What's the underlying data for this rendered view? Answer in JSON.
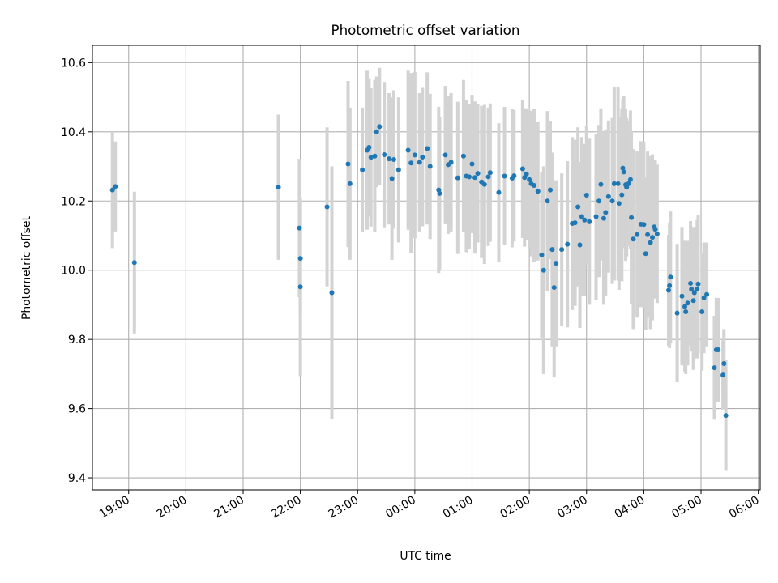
{
  "chart_data": {
    "type": "scatter",
    "title": "Photometric offset variation",
    "xlabel": "UTC time",
    "ylabel": "Photometric offset",
    "colors": {
      "points": "#1f77b4",
      "error_bars": "#d3d3d3",
      "grid": "#b0b0b0"
    },
    "grid": true,
    "legend": "none",
    "xaxis": {
      "kind": "time-of-day",
      "start_time": "18:22",
      "end_time": "06:02",
      "tick_times": [
        "19:00",
        "20:00",
        "21:00",
        "22:00",
        "23:00",
        "00:00",
        "01:00",
        "02:00",
        "03:00",
        "04:00",
        "05:00",
        "06:00"
      ],
      "tick_labels": [
        "19:00",
        "20:00",
        "21:00",
        "22:00",
        "23:00",
        "00:00",
        "01:00",
        "02:00",
        "03:00",
        "04:00",
        "05:00",
        "06:00"
      ]
    },
    "yaxis": {
      "range": [
        9.365,
        10.65
      ],
      "ticks": [
        9.4,
        9.6,
        9.8,
        10.0,
        10.2,
        10.4,
        10.6
      ],
      "tick_labels": [
        "9.4",
        "9.6",
        "9.8",
        "10.0",
        "10.2",
        "10.4",
        "10.6"
      ]
    },
    "points": [
      {
        "x": "18:43",
        "y": 10.232,
        "err": 0.168
      },
      {
        "x": "18:46",
        "y": 10.242,
        "err": 0.13
      },
      {
        "x": "19:06",
        "y": 10.022,
        "err": 0.205
      },
      {
        "x": "21:37",
        "y": 10.24,
        "err": 0.21
      },
      {
        "x": "21:59",
        "y": 10.122,
        "err": 0.2
      },
      {
        "x": "22:00",
        "y": 10.034,
        "err": 0.165
      },
      {
        "x": "22:00",
        "y": 9.952,
        "err": 0.258
      },
      {
        "x": "22:28",
        "y": 10.183,
        "err": 0.23
      },
      {
        "x": "22:33",
        "y": 9.935,
        "err": 0.365
      },
      {
        "x": "22:50",
        "y": 10.307,
        "err": 0.24
      },
      {
        "x": "22:52",
        "y": 10.25,
        "err": 0.22
      },
      {
        "x": "23:05",
        "y": 10.29,
        "err": 0.18
      },
      {
        "x": "23:10",
        "y": 10.347,
        "err": 0.23
      },
      {
        "x": "23:12",
        "y": 10.355,
        "err": 0.2
      },
      {
        "x": "23:14",
        "y": 10.326,
        "err": 0.2
      },
      {
        "x": "23:18",
        "y": 10.33,
        "err": 0.22
      },
      {
        "x": "23:20",
        "y": 10.4,
        "err": 0.16
      },
      {
        "x": "23:23",
        "y": 10.415,
        "err": 0.17
      },
      {
        "x": "23:28",
        "y": 10.334,
        "err": 0.21
      },
      {
        "x": "23:33",
        "y": 10.322,
        "err": 0.19
      },
      {
        "x": "23:36",
        "y": 10.265,
        "err": 0.235
      },
      {
        "x": "23:38",
        "y": 10.32,
        "err": 0.2
      },
      {
        "x": "23:43",
        "y": 10.29,
        "err": 0.21
      },
      {
        "x": "23:53",
        "y": 10.347,
        "err": 0.23
      },
      {
        "x": "23:56",
        "y": 10.31,
        "err": 0.26
      },
      {
        "x": "00:00",
        "y": 10.333,
        "err": 0.24
      },
      {
        "x": "00:05",
        "y": 10.312,
        "err": 0.2
      },
      {
        "x": "00:08",
        "y": 10.327,
        "err": 0.2
      },
      {
        "x": "00:13",
        "y": 10.352,
        "err": 0.22
      },
      {
        "x": "00:16",
        "y": 10.3,
        "err": 0.21
      },
      {
        "x": "00:25",
        "y": 10.232,
        "err": 0.24
      },
      {
        "x": "00:26",
        "y": 10.222,
        "err": 0.22
      },
      {
        "x": "00:32",
        "y": 10.333,
        "err": 0.2
      },
      {
        "x": "00:35",
        "y": 10.305,
        "err": 0.2
      },
      {
        "x": "00:38",
        "y": 10.312,
        "err": 0.2
      },
      {
        "x": "00:45",
        "y": 10.267,
        "err": 0.22
      },
      {
        "x": "00:51",
        "y": 10.33,
        "err": 0.22
      },
      {
        "x": "00:54",
        "y": 10.272,
        "err": 0.22
      },
      {
        "x": "00:57",
        "y": 10.27,
        "err": 0.21
      },
      {
        "x": "01:00",
        "y": 10.307,
        "err": 0.2
      },
      {
        "x": "01:03",
        "y": 10.268,
        "err": 0.22
      },
      {
        "x": "01:06",
        "y": 10.28,
        "err": 0.2
      },
      {
        "x": "01:10",
        "y": 10.255,
        "err": 0.22
      },
      {
        "x": "01:13",
        "y": 10.248,
        "err": 0.23
      },
      {
        "x": "01:17",
        "y": 10.27,
        "err": 0.2
      },
      {
        "x": "01:19",
        "y": 10.282,
        "err": 0.2
      },
      {
        "x": "01:28",
        "y": 10.225,
        "err": 0.2
      },
      {
        "x": "01:34",
        "y": 10.272,
        "err": 0.2
      },
      {
        "x": "01:42",
        "y": 10.266,
        "err": 0.2
      },
      {
        "x": "01:44",
        "y": 10.273,
        "err": 0.19
      },
      {
        "x": "01:53",
        "y": 10.293,
        "err": 0.2
      },
      {
        "x": "01:55",
        "y": 10.268,
        "err": 0.2
      },
      {
        "x": "01:57",
        "y": 10.278,
        "err": 0.19
      },
      {
        "x": "02:00",
        "y": 10.262,
        "err": 0.2
      },
      {
        "x": "02:02",
        "y": 10.25,
        "err": 0.21
      },
      {
        "x": "02:05",
        "y": 10.245,
        "err": 0.22
      },
      {
        "x": "02:09",
        "y": 10.228,
        "err": 0.2
      },
      {
        "x": "02:13",
        "y": 10.044,
        "err": 0.24
      },
      {
        "x": "02:15",
        "y": 10.0,
        "err": 0.3
      },
      {
        "x": "02:19",
        "y": 10.2,
        "err": 0.26
      },
      {
        "x": "02:22",
        "y": 10.232,
        "err": 0.2
      },
      {
        "x": "02:24",
        "y": 10.06,
        "err": 0.28
      },
      {
        "x": "02:26",
        "y": 9.95,
        "err": 0.26
      },
      {
        "x": "02:28",
        "y": 10.02,
        "err": 0.24
      },
      {
        "x": "02:34",
        "y": 10.06,
        "err": 0.22
      },
      {
        "x": "02:40",
        "y": 10.075,
        "err": 0.24
      },
      {
        "x": "02:45",
        "y": 10.135,
        "err": 0.25
      },
      {
        "x": "02:48",
        "y": 10.137,
        "err": 0.24
      },
      {
        "x": "02:51",
        "y": 10.183,
        "err": 0.23
      },
      {
        "x": "02:53",
        "y": 10.073,
        "err": 0.24
      },
      {
        "x": "02:55",
        "y": 10.155,
        "err": 0.23
      },
      {
        "x": "02:58",
        "y": 10.145,
        "err": 0.22
      },
      {
        "x": "03:00",
        "y": 10.217,
        "err": 0.2
      },
      {
        "x": "03:03",
        "y": 10.14,
        "err": 0.24
      },
      {
        "x": "03:10",
        "y": 10.155,
        "err": 0.24
      },
      {
        "x": "03:13",
        "y": 10.2,
        "err": 0.22
      },
      {
        "x": "03:15",
        "y": 10.248,
        "err": 0.22
      },
      {
        "x": "03:18",
        "y": 10.15,
        "err": 0.25
      },
      {
        "x": "03:20",
        "y": 10.167,
        "err": 0.24
      },
      {
        "x": "03:23",
        "y": 10.213,
        "err": 0.22
      },
      {
        "x": "03:27",
        "y": 10.2,
        "err": 0.24
      },
      {
        "x": "03:29",
        "y": 10.25,
        "err": 0.28
      },
      {
        "x": "03:33",
        "y": 10.25,
        "err": 0.28
      },
      {
        "x": "03:34",
        "y": 10.193,
        "err": 0.25
      },
      {
        "x": "03:37",
        "y": 10.218,
        "err": 0.25
      },
      {
        "x": "03:38",
        "y": 10.295,
        "err": 0.2
      },
      {
        "x": "03:39",
        "y": 10.284,
        "err": 0.22
      },
      {
        "x": "03:41",
        "y": 10.247,
        "err": 0.22
      },
      {
        "x": "03:42",
        "y": 10.24,
        "err": 0.2
      },
      {
        "x": "03:44",
        "y": 10.25,
        "err": 0.18
      },
      {
        "x": "03:46",
        "y": 10.262,
        "err": 0.2
      },
      {
        "x": "03:47",
        "y": 10.152,
        "err": 0.25
      },
      {
        "x": "03:49",
        "y": 10.09,
        "err": 0.26
      },
      {
        "x": "03:53",
        "y": 10.103,
        "err": 0.24
      },
      {
        "x": "03:57",
        "y": 10.133,
        "err": 0.24
      },
      {
        "x": "04:00",
        "y": 10.132,
        "err": 0.24
      },
      {
        "x": "04:02",
        "y": 10.048,
        "err": 0.22
      },
      {
        "x": "04:04",
        "y": 10.103,
        "err": 0.24
      },
      {
        "x": "04:07",
        "y": 10.08,
        "err": 0.25
      },
      {
        "x": "04:09",
        "y": 10.095,
        "err": 0.24
      },
      {
        "x": "04:11",
        "y": 10.125,
        "err": 0.19
      },
      {
        "x": "04:12",
        "y": 10.118,
        "err": 0.2
      },
      {
        "x": "04:14",
        "y": 10.105,
        "err": 0.2
      },
      {
        "x": "04:26",
        "y": 9.942,
        "err": 0.16
      },
      {
        "x": "04:27",
        "y": 9.955,
        "err": 0.18
      },
      {
        "x": "04:28",
        "y": 9.98,
        "err": 0.19
      },
      {
        "x": "04:35",
        "y": 9.876,
        "err": 0.2
      },
      {
        "x": "04:40",
        "y": 9.925,
        "err": 0.2
      },
      {
        "x": "04:43",
        "y": 9.895,
        "err": 0.19
      },
      {
        "x": "04:44",
        "y": 9.88,
        "err": 0.18
      },
      {
        "x": "04:46",
        "y": 9.905,
        "err": 0.18
      },
      {
        "x": "04:49",
        "y": 9.962,
        "err": 0.18
      },
      {
        "x": "04:50",
        "y": 9.945,
        "err": 0.18
      },
      {
        "x": "04:52",
        "y": 9.912,
        "err": 0.2
      },
      {
        "x": "04:53",
        "y": 9.935,
        "err": 0.19
      },
      {
        "x": "04:56",
        "y": 9.945,
        "err": 0.2
      },
      {
        "x": "04:57",
        "y": 9.96,
        "err": 0.2
      },
      {
        "x": "05:01",
        "y": 9.88,
        "err": 0.17
      },
      {
        "x": "05:03",
        "y": 9.92,
        "err": 0.16
      },
      {
        "x": "05:06",
        "y": 9.93,
        "err": 0.15
      },
      {
        "x": "05:14",
        "y": 9.718,
        "err": 0.15
      },
      {
        "x": "05:16",
        "y": 9.77,
        "err": 0.15
      },
      {
        "x": "05:18",
        "y": 9.77,
        "err": 0.15
      },
      {
        "x": "05:23",
        "y": 9.697,
        "err": 0.1
      },
      {
        "x": "05:24",
        "y": 9.73,
        "err": 0.1
      },
      {
        "x": "05:26",
        "y": 9.58,
        "err": 0.16
      }
    ]
  }
}
